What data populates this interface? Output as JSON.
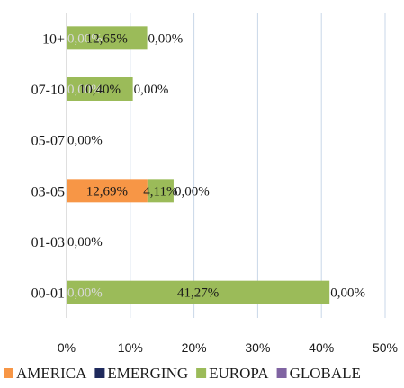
{
  "chart_data": {
    "type": "bar",
    "orientation": "horizontal",
    "stacked": true,
    "categories": [
      "10+",
      "07-10",
      "05-07",
      "03-05",
      "01-03",
      "00-01"
    ],
    "xlim": [
      0,
      50
    ],
    "x_ticks": [
      "0%",
      "10%",
      "20%",
      "30%",
      "40%",
      "50%"
    ],
    "grid": "vertical",
    "legend_position": "bottom",
    "series": [
      {
        "name": "AMERICA",
        "color": "#F79646",
        "values": [
          0,
          0,
          0,
          12.69,
          0,
          0
        ],
        "labels": [
          "0,00%",
          "0,00%",
          "",
          "12,69%",
          "",
          "0,00%"
        ]
      },
      {
        "name": "EMERGING",
        "color": "#1F2A5C",
        "values": [
          0,
          0,
          0,
          0,
          0,
          0
        ],
        "labels": [
          "",
          "",
          "",
          "",
          "",
          ""
        ]
      },
      {
        "name": "EUROPA",
        "color": "#9BBB59",
        "values": [
          12.65,
          10.4,
          0,
          4.11,
          0,
          41.27
        ],
        "labels": [
          "12,65%",
          "10,40%",
          "",
          "4,11%",
          "",
          "41,27%"
        ]
      },
      {
        "name": "GLOBALE",
        "color": "#8064A2",
        "values": [
          0,
          0,
          0,
          0,
          0,
          0
        ],
        "labels": [
          "0,00%",
          "0,00%",
          "0,00%",
          "0,00%",
          "0,00%",
          "0,00%"
        ]
      }
    ]
  }
}
